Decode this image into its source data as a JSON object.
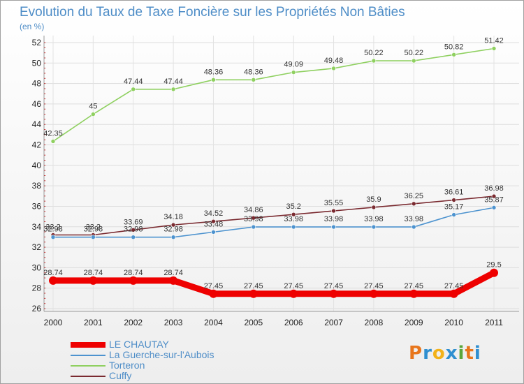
{
  "header": {
    "title": "Evolution du Taux de Taxe Foncière sur les Propriétés Non Bâties",
    "unit": "(en %)"
  },
  "logo": {
    "text": "Proxiti",
    "colors": [
      "#e8761c",
      "#2f8fd0",
      "#f2b21a",
      "#2f8fd0",
      "#5aa63a",
      "#e8761c",
      "#2f8fd0"
    ]
  },
  "chart_data": {
    "type": "line",
    "title": "Evolution du Taux de Taxe Foncière sur les Propriétés Non Bâties",
    "ylabel": "(en %)",
    "xlabel": "",
    "ylim": [
      26,
      52
    ],
    "yticks": [
      26,
      28,
      30,
      32,
      34,
      36,
      38,
      40,
      42,
      44,
      46,
      48,
      50,
      52
    ],
    "grid": true,
    "legend_placement": "bottom-left",
    "x": [
      "2000",
      "2001",
      "2002",
      "2003",
      "2004",
      "2005",
      "2006",
      "2007",
      "2008",
      "2009",
      "2010",
      "2011"
    ],
    "series": [
      {
        "name": "LE CHAUTAY",
        "color": "#ee0000",
        "values": [
          28.74,
          28.74,
          28.74,
          28.74,
          27.45,
          27.45,
          27.45,
          27.45,
          27.45,
          27.45,
          27.45,
          29.5
        ],
        "labels": [
          "28.74",
          "28.74",
          "28.74",
          "28.74",
          "27.45",
          "27.45",
          "27.45",
          "27.45",
          "27.45",
          "27.45",
          "27.45",
          "29.5"
        ]
      },
      {
        "name": "La Guerche-sur-l'Aubois",
        "color": "#4d93cf",
        "values": [
          32.98,
          32.98,
          32.98,
          32.98,
          33.48,
          33.98,
          33.98,
          33.98,
          33.98,
          33.98,
          35.17,
          35.87
        ],
        "labels": [
          "32.98",
          "32.98",
          "32.98",
          "32.98",
          "33.48",
          "33.98",
          "33.98",
          "33.98",
          "33.98",
          "33.98",
          "35.17",
          "35.87"
        ]
      },
      {
        "name": "Torteron",
        "color": "#8fd060",
        "values": [
          42.35,
          45,
          47.44,
          47.44,
          48.36,
          48.36,
          49.09,
          49.48,
          50.22,
          50.22,
          50.82,
          51.42
        ],
        "labels": [
          "42.35",
          "45",
          "47.44",
          "47.44",
          "48.36",
          "48.36",
          "49.09",
          "49.48",
          "50.22",
          "50.22",
          "50.82",
          "51.42"
        ]
      },
      {
        "name": "Cuffy",
        "color": "#7a2a30",
        "values": [
          33.2,
          33.2,
          33.69,
          34.18,
          34.52,
          34.86,
          35.2,
          35.55,
          35.9,
          36.25,
          36.61,
          36.98
        ],
        "labels": [
          "33.2",
          "33.2",
          "33.69",
          "34.18",
          "34.52",
          "34.86",
          "35.2",
          "35.55",
          "35.9",
          "36.25",
          "36.61",
          "36.98"
        ]
      }
    ]
  }
}
